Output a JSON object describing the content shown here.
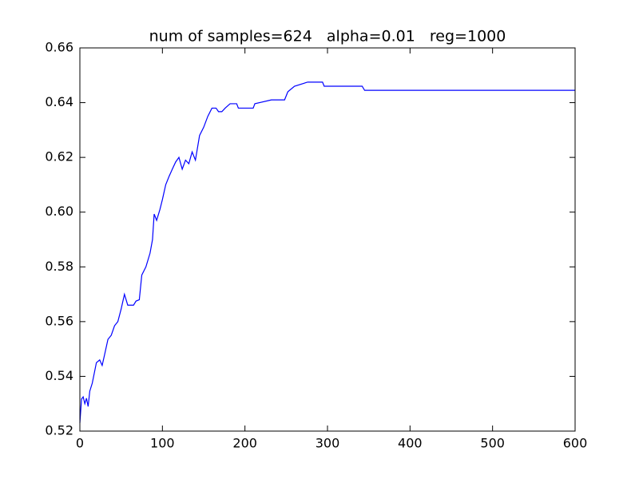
{
  "chart_data": {
    "type": "line",
    "title": "num of samples=624   alpha=0.01   reg=1000",
    "x": [
      0,
      2,
      4,
      6,
      8,
      10,
      12,
      15,
      18,
      20,
      24,
      27,
      30,
      34,
      38,
      42,
      46,
      50,
      54,
      56,
      58,
      65,
      68,
      72,
      75,
      80,
      85,
      88,
      90,
      93,
      97,
      100,
      104,
      108,
      112,
      116,
      120,
      124,
      128,
      132,
      136,
      140,
      145,
      150,
      155,
      160,
      165,
      168,
      172,
      176,
      182,
      190,
      192,
      210,
      212,
      232,
      248,
      252,
      260,
      276,
      294,
      296,
      342,
      345,
      600
    ],
    "series": [
      {
        "color": "#0000ff",
        "values": [
          0.523,
          0.5317,
          0.5325,
          0.53,
          0.532,
          0.529,
          0.5346,
          0.5375,
          0.542,
          0.545,
          0.546,
          0.544,
          0.548,
          0.5535,
          0.555,
          0.5585,
          0.56,
          0.5646,
          0.57,
          0.568,
          0.566,
          0.566,
          0.5675,
          0.568,
          0.577,
          0.58,
          0.585,
          0.59,
          0.5993,
          0.597,
          0.601,
          0.6046,
          0.61,
          0.613,
          0.6157,
          0.6183,
          0.62,
          0.6157,
          0.619,
          0.6177,
          0.622,
          0.619,
          0.628,
          0.631,
          0.635,
          0.638,
          0.638,
          0.6367,
          0.6367,
          0.638,
          0.6396,
          0.6396,
          0.638,
          0.638,
          0.6396,
          0.641,
          0.641,
          0.644,
          0.646,
          0.6475,
          0.6475,
          0.646,
          0.646,
          0.6445,
          0.6445
        ]
      }
    ],
    "xlim": [
      0,
      600
    ],
    "xticks": [
      0,
      100,
      200,
      300,
      400,
      500,
      600
    ],
    "ylim": [
      0.52,
      0.66
    ],
    "yticks": [
      0.52,
      0.54,
      0.56,
      0.58,
      {
        "value": 0.6,
        "label": "0.60"
      },
      0.62,
      0.64,
      0.66
    ]
  }
}
